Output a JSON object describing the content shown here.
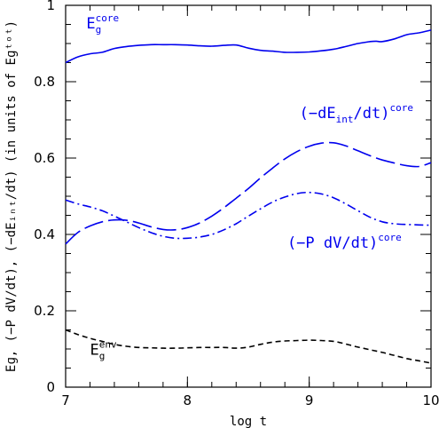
{
  "chart_data": {
    "type": "line",
    "xlabel": "log t",
    "ylabel": "Eɡ, (−P dV/dt), (−dEᵢₙₜ/dt) (in units of Eɡᵗᵒᵗ)",
    "xlim": [
      7,
      10
    ],
    "ylim": [
      0,
      1
    ],
    "x_ticks": [
      "7",
      "8",
      "9",
      "10"
    ],
    "y_ticks": [
      "0",
      "0.2",
      "0.4",
      "0.6",
      "0.8",
      "1"
    ],
    "grid": false,
    "legend": "none",
    "series": [
      {
        "name": "E_g^core",
        "style": "solid",
        "color": "#0000ee",
        "x": [
          7.0,
          7.1,
          7.2,
          7.3,
          7.4,
          7.5,
          7.6,
          7.7,
          7.8,
          7.9,
          8.0,
          8.1,
          8.2,
          8.3,
          8.4,
          8.5,
          8.6,
          8.7,
          8.8,
          8.9,
          9.0,
          9.1,
          9.2,
          9.3,
          9.4,
          9.5,
          9.55,
          9.6,
          9.7,
          9.8,
          9.9,
          10.0
        ],
        "y": [
          0.85,
          0.865,
          0.873,
          0.877,
          0.887,
          0.892,
          0.895,
          0.897,
          0.897,
          0.897,
          0.896,
          0.894,
          0.893,
          0.895,
          0.896,
          0.888,
          0.882,
          0.88,
          0.877,
          0.877,
          0.878,
          0.881,
          0.885,
          0.892,
          0.9,
          0.905,
          0.906,
          0.905,
          0.912,
          0.923,
          0.928,
          0.935
        ]
      },
      {
        "name": "(-dE_int/dt)^core",
        "style": "long-dash",
        "color": "#0000ee",
        "x": [
          7.0,
          7.1,
          7.2,
          7.3,
          7.4,
          7.5,
          7.6,
          7.7,
          7.8,
          7.9,
          8.0,
          8.1,
          8.2,
          8.3,
          8.4,
          8.5,
          8.6,
          8.7,
          8.8,
          8.9,
          9.0,
          9.1,
          9.2,
          9.3,
          9.4,
          9.5,
          9.6,
          9.7,
          9.8,
          9.9,
          10.0
        ],
        "y": [
          0.375,
          0.405,
          0.422,
          0.433,
          0.438,
          0.437,
          0.43,
          0.42,
          0.413,
          0.412,
          0.418,
          0.43,
          0.448,
          0.47,
          0.495,
          0.52,
          0.548,
          0.574,
          0.598,
          0.617,
          0.631,
          0.639,
          0.64,
          0.632,
          0.619,
          0.606,
          0.595,
          0.587,
          0.58,
          0.578,
          0.588
        ]
      },
      {
        "name": "(-P dV/dt)^core",
        "style": "dash-dot",
        "color": "#0000ee",
        "x": [
          7.0,
          7.1,
          7.2,
          7.3,
          7.4,
          7.5,
          7.6,
          7.7,
          7.8,
          7.9,
          8.0,
          8.1,
          8.2,
          8.3,
          8.4,
          8.5,
          8.6,
          8.7,
          8.8,
          8.9,
          9.0,
          9.1,
          9.2,
          9.3,
          9.4,
          9.5,
          9.6,
          9.7,
          9.8,
          9.9,
          10.0
        ],
        "y": [
          0.49,
          0.48,
          0.472,
          0.462,
          0.448,
          0.433,
          0.418,
          0.405,
          0.395,
          0.39,
          0.39,
          0.393,
          0.4,
          0.412,
          0.428,
          0.448,
          0.467,
          0.485,
          0.498,
          0.507,
          0.51,
          0.506,
          0.496,
          0.48,
          0.462,
          0.445,
          0.433,
          0.428,
          0.426,
          0.425,
          0.424
        ]
      },
      {
        "name": "E_g^env",
        "style": "short-dash",
        "color": "#000000",
        "x": [
          7.0,
          7.1,
          7.2,
          7.3,
          7.4,
          7.5,
          7.6,
          7.7,
          7.8,
          7.9,
          8.0,
          8.1,
          8.2,
          8.3,
          8.4,
          8.5,
          8.6,
          8.7,
          8.8,
          8.9,
          9.0,
          9.1,
          9.2,
          9.3,
          9.4,
          9.5,
          9.6,
          9.7,
          9.8,
          9.9,
          10.0
        ],
        "y": [
          0.15,
          0.138,
          0.128,
          0.12,
          0.112,
          0.107,
          0.104,
          0.103,
          0.102,
          0.102,
          0.103,
          0.104,
          0.104,
          0.104,
          0.102,
          0.105,
          0.112,
          0.118,
          0.121,
          0.122,
          0.123,
          0.122,
          0.12,
          0.113,
          0.105,
          0.098,
          0.091,
          0.083,
          0.075,
          0.069,
          0.063
        ]
      }
    ],
    "annotations": [
      {
        "id": "core",
        "base": "E",
        "sub": "g",
        "sup": "core",
        "color": "#0000ee",
        "x": 7.17,
        "y": 0.94
      },
      {
        "id": "dEint",
        "text_a": "(−dE",
        "sub": "int",
        "text_b": "/dt)",
        "sup": "core",
        "color": "#0000ee",
        "x": 8.92,
        "y": 0.705
      },
      {
        "id": "PdV",
        "text_a": "(−P dV/dt)",
        "sup": "core",
        "color": "#0000ee",
        "x": 8.82,
        "y": 0.365
      },
      {
        "id": "env",
        "base": "E",
        "sub": "g",
        "sup": "env",
        "color": "#000000",
        "x": 7.2,
        "y": 0.085
      }
    ]
  }
}
